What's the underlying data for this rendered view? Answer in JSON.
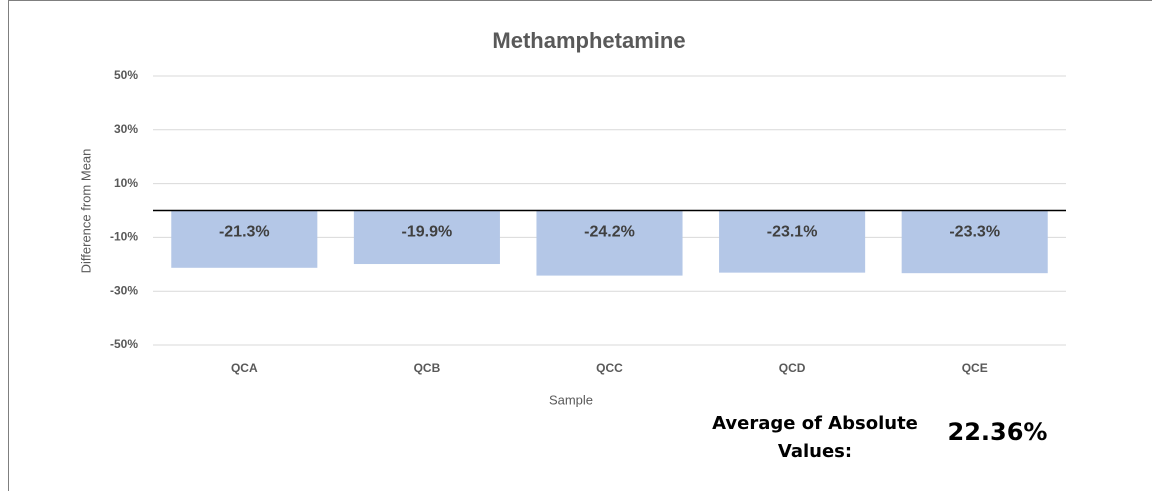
{
  "chart_data": {
    "type": "bar",
    "title": "Methamphetamine",
    "x_label": "Sample",
    "y_label": "Difference from Mean",
    "categories": [
      "QCA",
      "QCB",
      "QCC",
      "QCD",
      "QCE"
    ],
    "values": [
      -21.3,
      -19.9,
      -24.2,
      -23.1,
      -23.3
    ],
    "value_labels": [
      "-21.3%",
      "-19.9%",
      "-24.2%",
      "-23.1%",
      "-23.3%"
    ],
    "color": "#b4c7e7",
    "ylim": [
      -50,
      50
    ],
    "yticks": [
      {
        "value": -50,
        "label": "-50%"
      },
      {
        "value": -30,
        "label": "-30%"
      },
      {
        "value": -10,
        "label": "-10%"
      },
      {
        "value": 10,
        "label": "10%"
      },
      {
        "value": 30,
        "label": "30%"
      },
      {
        "value": 50,
        "label": "50%"
      }
    ],
    "grid": true,
    "annotations": [
      "Average of Absolute Values:",
      "22.36%"
    ]
  }
}
